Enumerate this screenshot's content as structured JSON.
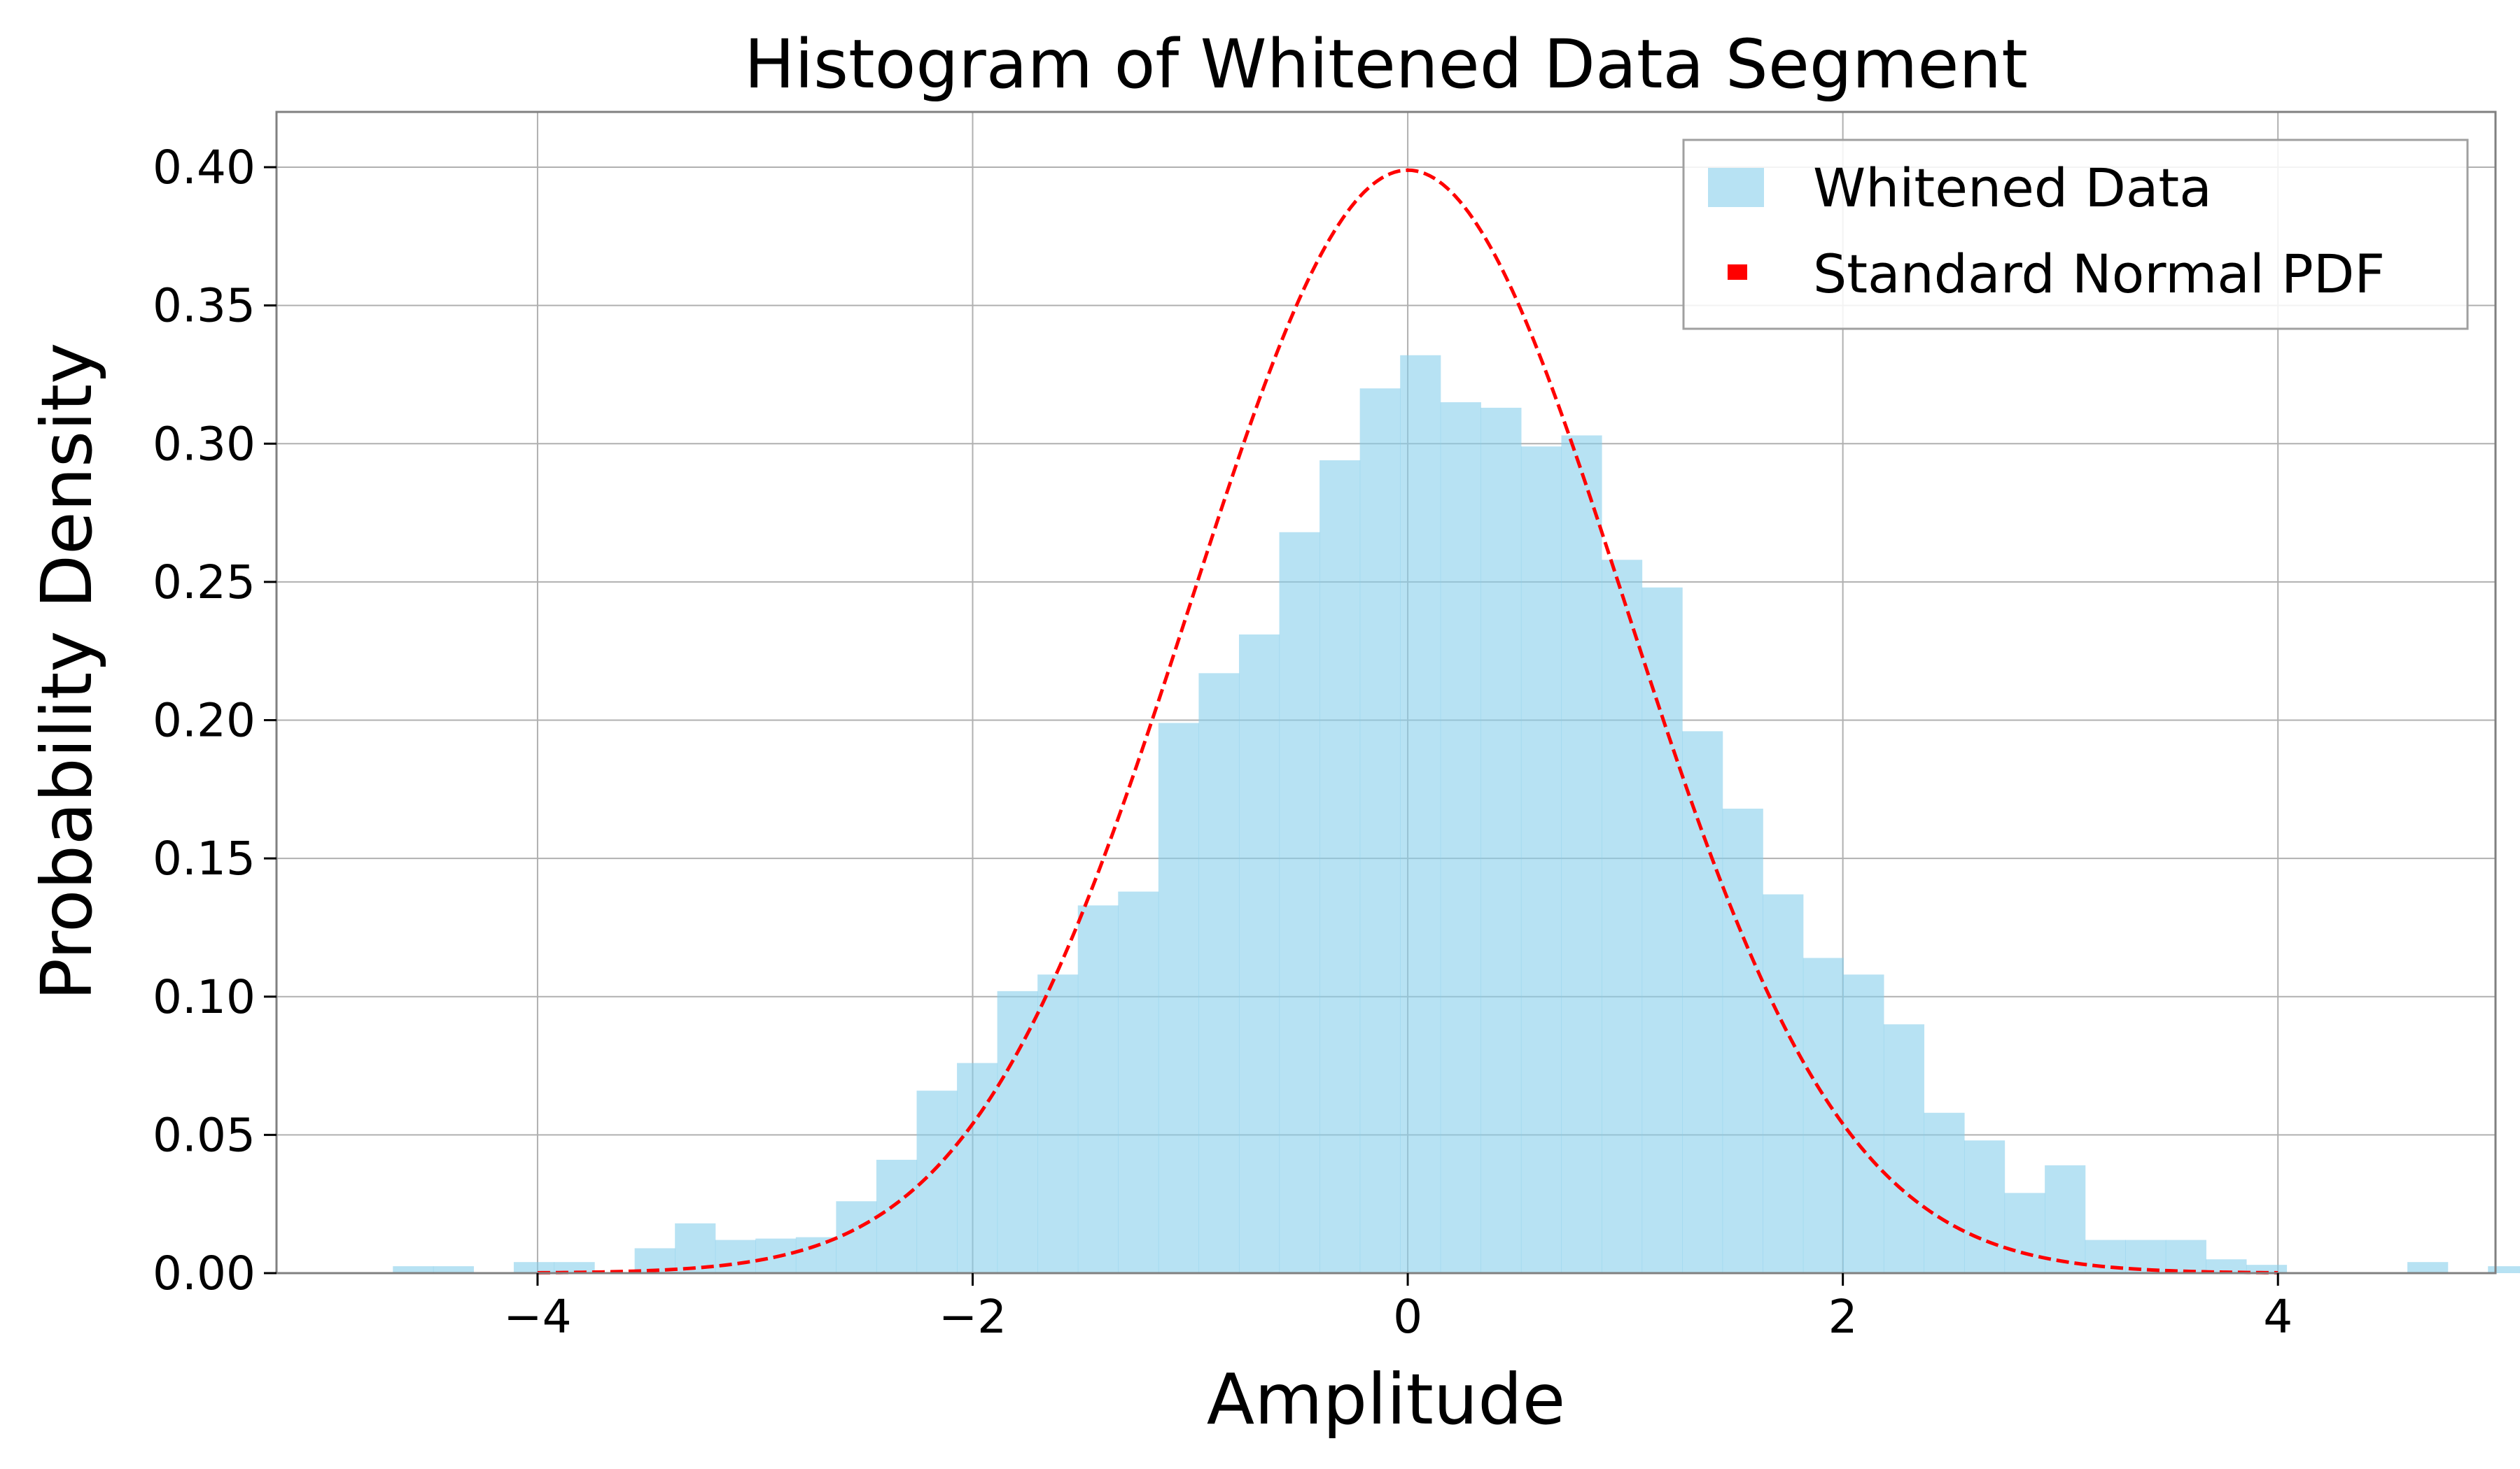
{
  "chart_data": {
    "type": "bar",
    "title": "Histogram of Whitened Data Segment",
    "xlabel": "Amplitude",
    "ylabel": "Probability Density",
    "xlim": [
      -5.2,
      5.0
    ],
    "ylim": [
      0.0,
      0.42
    ],
    "grid": true,
    "legend_position": "top-right",
    "x_ticks": [
      -4,
      -2,
      0,
      2,
      4
    ],
    "x_tick_labels": [
      "−4",
      "−2",
      "0",
      "2",
      "4"
    ],
    "y_ticks": [
      0.0,
      0.05,
      0.1,
      0.15,
      0.2,
      0.25,
      0.3,
      0.35,
      0.4
    ],
    "y_tick_labels": [
      "0.00",
      "0.05",
      "0.10",
      "0.15",
      "0.20",
      "0.25",
      "0.30",
      "0.35",
      "0.40"
    ],
    "histogram": {
      "name": "Whitened Data",
      "color": "#87ceeb",
      "opacity": 0.6,
      "bin_start": -4.665,
      "bin_width": 0.1852,
      "values": [
        0.0025,
        0.0025,
        0,
        0.004,
        0.004,
        0,
        0.009,
        0.018,
        0.012,
        0.0125,
        0.013,
        0.026,
        0.041,
        0.066,
        0.076,
        0.102,
        0.108,
        0.133,
        0.138,
        0.199,
        0.217,
        0.231,
        0.268,
        0.294,
        0.32,
        0.332,
        0.315,
        0.313,
        0.299,
        0.303,
        0.258,
        0.248,
        0.196,
        0.168,
        0.137,
        0.114,
        0.108,
        0.09,
        0.058,
        0.048,
        0.029,
        0.039,
        0.012,
        0.012,
        0.012,
        0.005,
        0.003,
        0,
        0,
        0,
        0.004,
        0,
        0.0025
      ]
    },
    "curve": {
      "name": "Standard Normal PDF",
      "color": "#ff0000",
      "style": "dashed",
      "function": "standard_normal_pdf",
      "x_range": [
        -4.0,
        4.0
      ]
    }
  }
}
